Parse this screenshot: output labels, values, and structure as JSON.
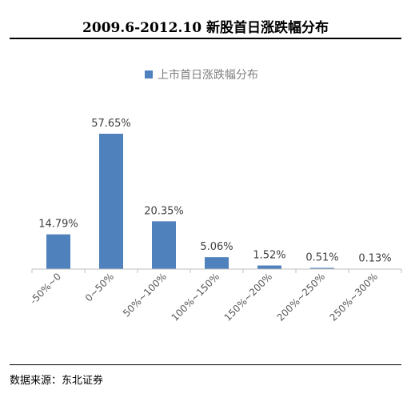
{
  "header": {
    "title": "2009.6-2012.10 新股首日涨跌幅分布"
  },
  "footer": {
    "source": "数据来源：东北证券"
  },
  "chart_data": {
    "type": "bar",
    "title": "2009.6-2012.10 新股首日涨跌幅分布",
    "categories": [
      "-50%~0",
      "0~50%",
      "50%~100%",
      "100%~150%",
      "150%~200%",
      "200%~250%",
      "250%~300%"
    ],
    "series": [
      {
        "name": "上市首日涨跌幅分布",
        "values": [
          14.79,
          57.65,
          20.35,
          5.06,
          1.52,
          0.51,
          0.13
        ],
        "labels": [
          "14.79%",
          "57.65%",
          "20.35%",
          "5.06%",
          "1.52%",
          "0.51%",
          "0.13%"
        ],
        "color": "#4f81bd"
      }
    ],
    "xlabel": "",
    "ylabel": "",
    "grid": false,
    "legend": "top-center"
  }
}
